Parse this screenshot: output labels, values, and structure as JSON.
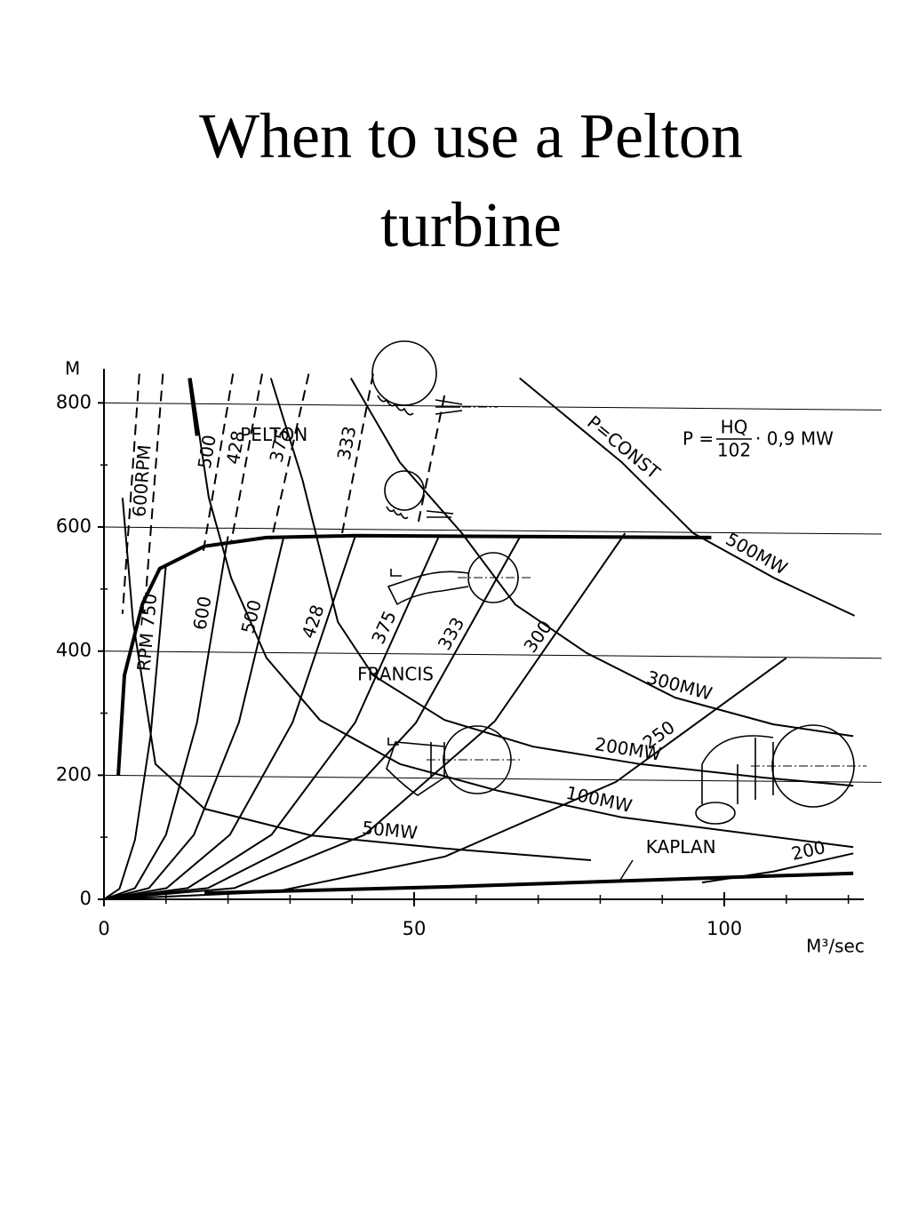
{
  "chart_data": {
    "type": "line",
    "title": "When to use a Pelton turbine",
    "ylabel": "M",
    "xlabel": "M³/sec",
    "formula": {
      "lhs": "P =",
      "numerator": "HQ",
      "denominator": "102",
      "rhs": "· 0,9 MW"
    },
    "annotations": [
      {
        "text": "PELTON",
        "x": 27.4,
        "y": 747
      },
      {
        "text": "FRANCIS",
        "x": 47,
        "y": 361
      },
      {
        "text": "KAPLAN",
        "x": 93,
        "y": 82
      }
    ],
    "color": "#000000",
    "grid": true,
    "xlim": [
      0,
      122.2
    ],
    "ylim": [
      0,
      855
    ],
    "xticks": [
      0,
      50,
      100
    ],
    "yticks": [
      0,
      200,
      400,
      600,
      800
    ],
    "xminorticks": [
      10,
      20,
      30,
      40,
      60,
      70,
      80,
      90,
      110,
      120
    ],
    "yminorticks": [
      100,
      300,
      500,
      700
    ],
    "series": [
      {
        "style": "dashed",
        "x": [
          5.7,
          3
        ],
        "values": [
          847,
          460
        ]
      },
      {
        "name": "600RPM",
        "style": "dashed",
        "x": [
          9.5,
          6.5
        ],
        "values": [
          847,
          460
        ]
      },
      {
        "name": "500",
        "style": "dashed",
        "x": [
          20.8,
          16
        ],
        "values": [
          847,
          560
        ]
      },
      {
        "name": "428",
        "style": "dashed",
        "x": [
          25.5,
          20.5
        ],
        "values": [
          847,
          575
        ]
      },
      {
        "name": "375",
        "style": "dashed",
        "x": [
          33,
          27
        ],
        "values": [
          847,
          580
        ]
      },
      {
        "name": "333",
        "style": "dashed",
        "x": [
          43.4,
          38.4
        ],
        "values": [
          847,
          590
        ]
      },
      {
        "style": "dashed",
        "x": [
          54.9,
          50.6
        ],
        "values": [
          812,
          604
        ]
      },
      {
        "style": "thick",
        "x": [
          13.8,
          15
        ],
        "values": [
          840,
          747
        ]
      },
      {
        "name": "500MW",
        "note": "P=CONST",
        "style": "solid",
        "x": [
          67,
          83.5,
          95,
          108,
          121
        ],
        "values": [
          840,
          704,
          590,
          518,
          457
        ]
      },
      {
        "name": "300MW",
        "style": "solid",
        "x": [
          39.8,
          47.7,
          57.7,
          66.3,
          77.8,
          92.1,
          107.9,
          120.8
        ],
        "values": [
          840,
          704,
          590,
          475,
          397,
          325,
          282,
          263
        ]
      },
      {
        "name": "200MW",
        "style": "solid",
        "x": [
          26.9,
          32,
          37.7,
          43.4,
          54.9,
          69.2,
          86.4,
          106.4,
          120.8
        ],
        "values": [
          840,
          676,
          447,
          361,
          289,
          246,
          218,
          196,
          183
        ]
      },
      {
        "name": "100MW",
        "style": "solid",
        "x": [
          14,
          16.9,
          20.5,
          26.2,
          34.8,
          47.7,
          63.5,
          83.5,
          120.8
        ],
        "values": [
          840,
          647,
          518,
          389,
          289,
          218,
          175,
          132,
          84
        ]
      },
      {
        "name": "50MW",
        "style": "solid",
        "x": [
          3,
          4.7,
          8.3,
          16.2,
          33.4,
          54.9,
          78.5
        ],
        "values": [
          647,
          447,
          218,
          146,
          103,
          82,
          63
        ]
      },
      {
        "name": "RPM 750",
        "style": "solid",
        "x": [
          0,
          2.5,
          5,
          7.5,
          10
        ],
        "values": [
          0,
          17,
          96,
          263,
          540
        ]
      },
      {
        "name": "600",
        "style": "solid",
        "x": [
          0,
          5,
          10,
          15,
          20
        ],
        "values": [
          0,
          18,
          104,
          285,
          585
        ]
      },
      {
        "name": "500",
        "style": "solid",
        "x": [
          0,
          7.25,
          14.5,
          21.75,
          29
        ],
        "values": [
          0,
          18,
          104,
          285,
          585
        ]
      },
      {
        "name": "428",
        "style": "solid",
        "x": [
          0,
          10.1,
          20.3,
          30.4,
          40.5
        ],
        "values": [
          0,
          18,
          104,
          285,
          585
        ]
      },
      {
        "name": "375",
        "style": "solid",
        "x": [
          0,
          13.5,
          27,
          40.5,
          54
        ],
        "values": [
          0,
          18,
          104,
          285,
          585
        ]
      },
      {
        "name": "333",
        "style": "solid",
        "x": [
          0,
          16.75,
          33.5,
          50.25,
          67
        ],
        "values": [
          0,
          18,
          103,
          284,
          583
        ]
      },
      {
        "name": "300",
        "style": "solid",
        "x": [
          0,
          21,
          42,
          63,
          84
        ],
        "values": [
          0,
          18,
          104,
          287,
          590
        ]
      },
      {
        "name": "250",
        "style": "solid",
        "x": [
          0,
          27.5,
          55,
          82.5,
          110
        ],
        "values": [
          0,
          12,
          69,
          189,
          389
        ]
      },
      {
        "style": "thick",
        "x": [
          2.3,
          3.3,
          6.2,
          9,
          16.2,
          26.2,
          40.5,
          97.9
        ],
        "values": [
          200,
          361,
          476,
          533,
          569,
          583,
          586,
          583
        ]
      },
      {
        "style": "thick",
        "x": [
          16.2,
          54.9,
          120.8
        ],
        "values": [
          10,
          20,
          42
        ]
      },
      {
        "name": "200",
        "style": "solid",
        "x": [
          96.4,
          108,
          120.8
        ],
        "values": [
          27,
          45,
          74
        ]
      }
    ]
  }
}
